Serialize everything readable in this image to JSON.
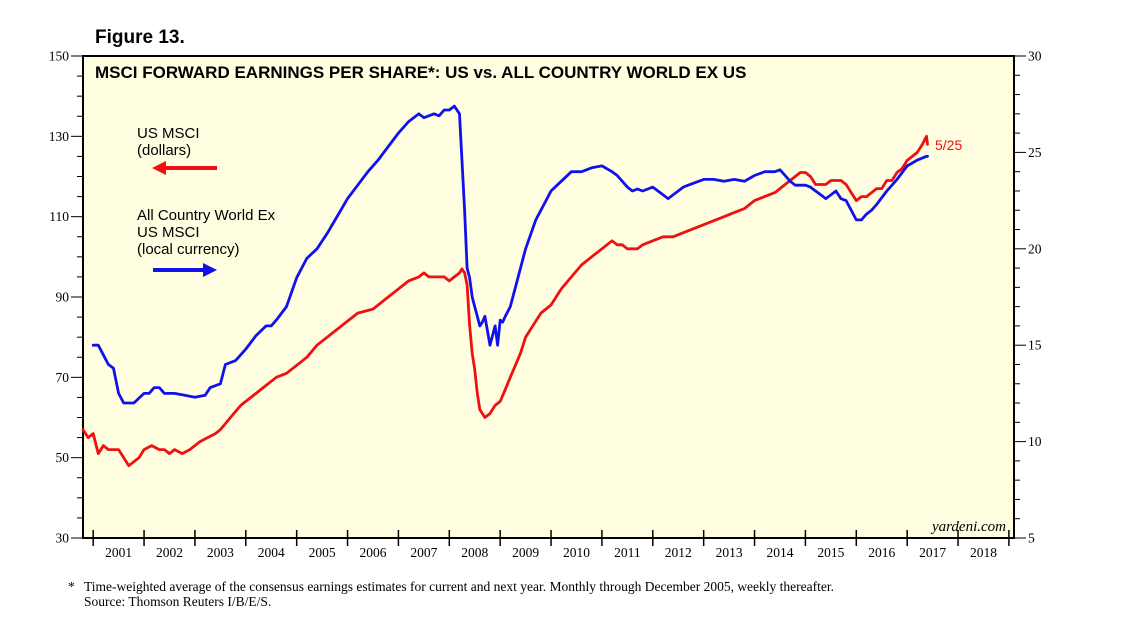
{
  "figure_label": "Figure 13.",
  "footnote": {
    "marker": "*",
    "line1": "Time-weighted average of the consensus earnings estimates for current and next year. Monthly through December 2005, weekly thereafter.",
    "line2": "Source: Thomson Reuters I/B/E/S."
  },
  "colors": {
    "us": "#ee1111",
    "acwx": "#1111ee",
    "plot_bg": "#fffee0",
    "axis": "#000000"
  },
  "chart_data": {
    "type": "line",
    "title": "MSCI FORWARD EARNINGS PER SHARE*: US vs. ALL COUNTRY WORLD EX US",
    "watermark": "yardeni.com",
    "last_point_label": "5/25",
    "x_range": [
      2000.8,
      2019.1
    ],
    "x_tick_labels": [
      "2001",
      "2002",
      "2003",
      "2004",
      "2005",
      "2006",
      "2007",
      "2008",
      "2009",
      "2010",
      "2011",
      "2012",
      "2013",
      "2014",
      "2015",
      "2016",
      "2017",
      "2018"
    ],
    "left_axis": {
      "range": [
        30,
        150
      ],
      "ticks": [
        30,
        50,
        70,
        90,
        110,
        130,
        150
      ],
      "tick_labels": [
        "30",
        "50",
        "70",
        "90",
        "110",
        "130",
        "150"
      ]
    },
    "right_axis": {
      "range": [
        5,
        30
      ],
      "ticks": [
        5,
        10,
        15,
        20,
        25,
        30
      ],
      "tick_labels": [
        "5",
        "10",
        "15",
        "20",
        "25",
        "30"
      ]
    },
    "legend": [
      {
        "text_lines": [
          "US MSCI",
          "(dollars)"
        ],
        "arrow": "left",
        "series": "US MSCI"
      },
      {
        "text_lines": [
          "All Country World Ex",
          "US MSCI",
          "(local currency)"
        ],
        "arrow": "right",
        "series": "All Country World Ex US MSCI"
      }
    ],
    "series": [
      {
        "name": "US MSCI",
        "axis": "left",
        "color_key": "us",
        "x": [
          2000.8,
          2000.9,
          2001.0,
          2001.1,
          2001.2,
          2001.3,
          2001.5,
          2001.7,
          2001.9,
          2002.0,
          2002.15,
          2002.3,
          2002.4,
          2002.5,
          2002.6,
          2002.75,
          2002.9,
          2003.0,
          2003.1,
          2003.25,
          2003.4,
          2003.5,
          2003.7,
          2003.9,
          2004.0,
          2004.2,
          2004.4,
          2004.6,
          2004.8,
          2005.0,
          2005.2,
          2005.4,
          2005.6,
          2005.8,
          2006.0,
          2006.2,
          2006.5,
          2006.8,
          2007.0,
          2007.2,
          2007.4,
          2007.5,
          2007.6,
          2007.75,
          2007.9,
          2008.0,
          2008.1,
          2008.2,
          2008.25,
          2008.3,
          2008.35,
          2008.4,
          2008.45,
          2008.5,
          2008.55,
          2008.6,
          2008.7,
          2008.8,
          2008.9,
          2009.0,
          2009.1,
          2009.2,
          2009.3,
          2009.4,
          2009.5,
          2009.6,
          2009.8,
          2010.0,
          2010.2,
          2010.4,
          2010.6,
          2010.8,
          2011.0,
          2011.1,
          2011.2,
          2011.3,
          2011.4,
          2011.5,
          2011.6,
          2011.7,
          2011.8,
          2012.0,
          2012.2,
          2012.4,
          2012.6,
          2012.8,
          2013.0,
          2013.2,
          2013.4,
          2013.6,
          2013.8,
          2014.0,
          2014.2,
          2014.4,
          2014.5,
          2014.6,
          2014.7,
          2014.8,
          2014.9,
          2015.0,
          2015.1,
          2015.2,
          2015.3,
          2015.4,
          2015.5,
          2015.6,
          2015.7,
          2015.8,
          2015.9,
          2016.0,
          2016.1,
          2016.2,
          2016.3,
          2016.4,
          2016.5,
          2016.6,
          2016.7,
          2016.8,
          2016.9,
          2017.0,
          2017.1,
          2017.2,
          2017.3,
          2017.38,
          2017.4
        ],
        "values": [
          57,
          55,
          56,
          51,
          53,
          52,
          52,
          48,
          50,
          52,
          53,
          52,
          52,
          51,
          52,
          51,
          52,
          53,
          54,
          55,
          56,
          57,
          60,
          63,
          64,
          66,
          68,
          70,
          71,
          73,
          75,
          78,
          80,
          82,
          84,
          86,
          87,
          90,
          92,
          94,
          95,
          96,
          95,
          95,
          95,
          94,
          95,
          96,
          97,
          96,
          93,
          83,
          76,
          72,
          66,
          62,
          60,
          61,
          63,
          64,
          67,
          70,
          73,
          76,
          80,
          82,
          86,
          88,
          92,
          95,
          98,
          100,
          102,
          103,
          104,
          103,
          103,
          102,
          102,
          102,
          103,
          104,
          105,
          105,
          106,
          107,
          108,
          109,
          110,
          111,
          112,
          114,
          115,
          116,
          117,
          118,
          119,
          120,
          121,
          121,
          120,
          118,
          118,
          118,
          119,
          119,
          119,
          118,
          116,
          114,
          115,
          115,
          116,
          117,
          117,
          119,
          119,
          121,
          122,
          124,
          125,
          126,
          128,
          130,
          128
        ]
      },
      {
        "name": "All Country World Ex US MSCI",
        "axis": "right",
        "color_key": "acwx",
        "x": [
          2001.0,
          2001.1,
          2001.2,
          2001.3,
          2001.4,
          2001.5,
          2001.6,
          2001.8,
          2002.0,
          2002.1,
          2002.2,
          2002.3,
          2002.4,
          2002.6,
          2002.8,
          2003.0,
          2003.2,
          2003.3,
          2003.5,
          2003.6,
          2003.8,
          2004.0,
          2004.2,
          2004.4,
          2004.5,
          2004.6,
          2004.8,
          2005.0,
          2005.2,
          2005.4,
          2005.6,
          2005.8,
          2006.0,
          2006.2,
          2006.4,
          2006.6,
          2006.8,
          2007.0,
          2007.2,
          2007.4,
          2007.5,
          2007.6,
          2007.7,
          2007.8,
          2007.9,
          2008.0,
          2008.1,
          2008.2,
          2008.3,
          2008.35,
          2008.4,
          2008.45,
          2008.5,
          2008.55,
          2008.6,
          2008.65,
          2008.7,
          2008.8,
          2008.9,
          2008.95,
          2009.0,
          2009.05,
          2009.1,
          2009.2,
          2009.3,
          2009.4,
          2009.5,
          2009.7,
          2009.9,
          2010.0,
          2010.2,
          2010.4,
          2010.6,
          2010.8,
          2011.0,
          2011.2,
          2011.3,
          2011.4,
          2011.5,
          2011.6,
          2011.7,
          2011.8,
          2012.0,
          2012.2,
          2012.3,
          2012.4,
          2012.5,
          2012.6,
          2012.8,
          2013.0,
          2013.2,
          2013.4,
          2013.6,
          2013.8,
          2014.0,
          2014.2,
          2014.4,
          2014.5,
          2014.6,
          2014.7,
          2014.8,
          2014.9,
          2015.0,
          2015.1,
          2015.2,
          2015.3,
          2015.4,
          2015.5,
          2015.6,
          2015.7,
          2015.8,
          2015.9,
          2016.0,
          2016.1,
          2016.2,
          2016.3,
          2016.4,
          2016.6,
          2016.8,
          2017.0,
          2017.2,
          2017.38,
          2017.4
        ],
        "values": [
          15.0,
          15.0,
          14.5,
          14.0,
          13.8,
          12.5,
          12.0,
          12.0,
          12.5,
          12.5,
          12.8,
          12.8,
          12.5,
          12.5,
          12.4,
          12.3,
          12.4,
          12.8,
          13.0,
          14.0,
          14.2,
          14.8,
          15.5,
          16.0,
          16.0,
          16.3,
          17.0,
          18.5,
          19.5,
          20.0,
          20.8,
          21.7,
          22.6,
          23.3,
          24.0,
          24.6,
          25.3,
          26.0,
          26.6,
          27.0,
          26.8,
          26.9,
          27.0,
          26.9,
          27.2,
          27.2,
          27.4,
          27.0,
          22.0,
          19.0,
          18.5,
          17.5,
          17.0,
          16.5,
          16.0,
          16.2,
          16.5,
          15.0,
          16.0,
          15.0,
          16.3,
          16.2,
          16.5,
          17.0,
          18.0,
          19.0,
          20.0,
          21.5,
          22.5,
          23.0,
          23.5,
          24.0,
          24.0,
          24.2,
          24.3,
          24.0,
          23.8,
          23.5,
          23.2,
          23.0,
          23.1,
          23.0,
          23.2,
          22.8,
          22.6,
          22.8,
          23.0,
          23.2,
          23.4,
          23.6,
          23.6,
          23.5,
          23.6,
          23.5,
          23.8,
          24.0,
          24.0,
          24.1,
          23.8,
          23.5,
          23.3,
          23.3,
          23.3,
          23.2,
          23.0,
          22.8,
          22.6,
          22.8,
          23.0,
          22.6,
          22.5,
          22.0,
          21.5,
          21.5,
          21.8,
          22.0,
          22.3,
          23.0,
          23.6,
          24.3,
          24.6,
          24.8,
          24.8
        ]
      }
    ]
  }
}
